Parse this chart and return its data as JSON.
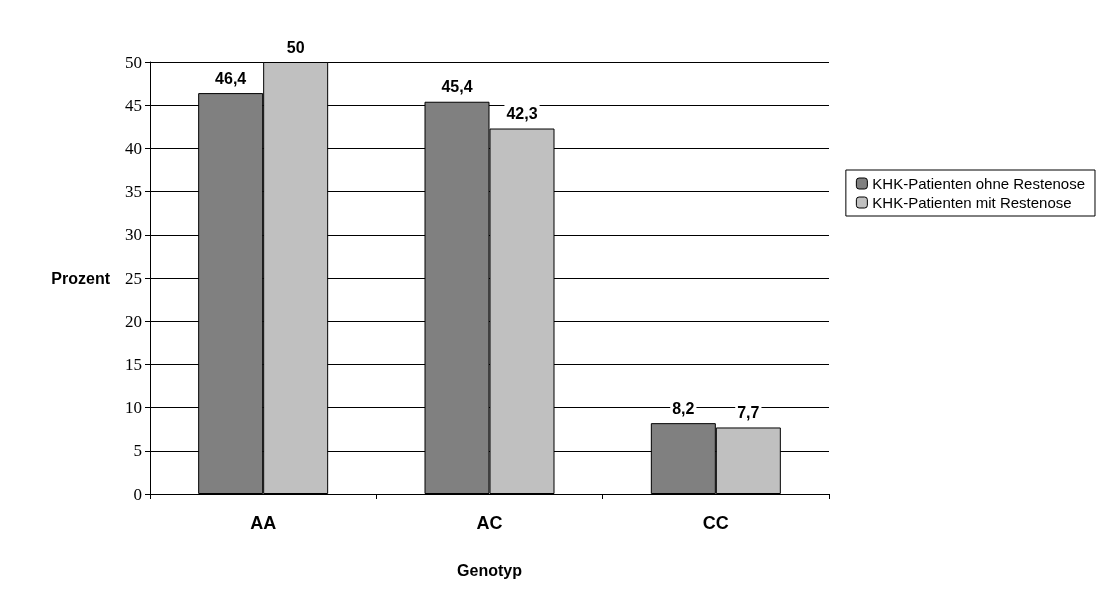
{
  "chart_data": {
    "type": "bar",
    "xlabel": "Genotyp",
    "ylabel": "Prozent",
    "categories": [
      "AA",
      "AC",
      "CC"
    ],
    "series": [
      {
        "name": "KHK-Patienten ohne Restenose",
        "color": "#808080",
        "values": [
          46.4,
          45.4,
          8.2
        ],
        "value_labels": [
          "46,4",
          "45,4",
          "8,2"
        ]
      },
      {
        "name": "KHK-Patienten mit Restenose",
        "color": "#c0c0c0",
        "values": [
          50,
          42.3,
          7.7
        ],
        "value_labels": [
          "50",
          "42,3",
          "7,7"
        ]
      }
    ],
    "ylim": [
      0,
      50
    ],
    "yticks": [
      0,
      5,
      10,
      15,
      20,
      25,
      30,
      35,
      40,
      45,
      50
    ],
    "grid": "y",
    "legend": "right"
  }
}
